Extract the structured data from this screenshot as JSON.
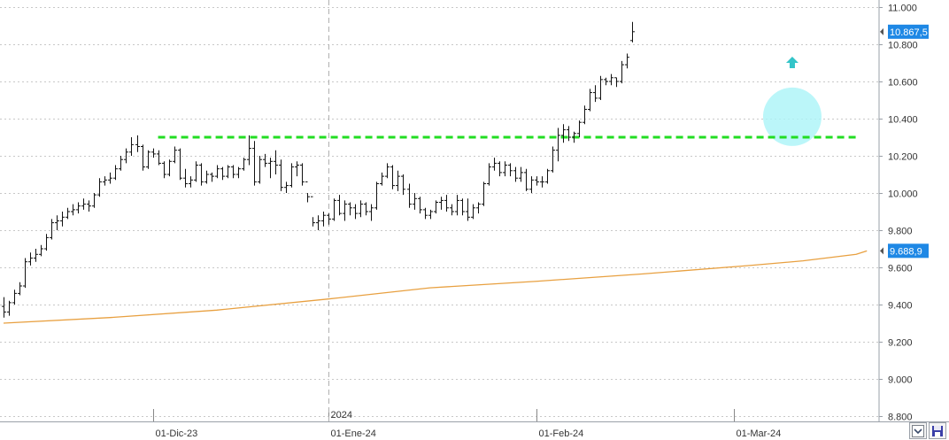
{
  "chart_data": {
    "type": "ohlc-bar",
    "title": "",
    "ylim": [
      8800,
      11000
    ],
    "y_ticks": [
      "11.000",
      "10.800",
      "10.600",
      "10.400",
      "10.200",
      "10.000",
      "9.800",
      "9.600",
      "9.400",
      "9.200",
      "9.000",
      "8.800"
    ],
    "y_tick_values": [
      11000,
      10800,
      10600,
      10400,
      10200,
      10000,
      9800,
      9600,
      9400,
      9200,
      9000,
      8800
    ],
    "x_labels": [
      {
        "label": "01-Dic-23",
        "index": 28
      },
      {
        "label": "01-Ene-24",
        "index": 61
      },
      {
        "label": "01-Feb-24",
        "index": 100
      },
      {
        "label": "01-Mar-24",
        "index": 137
      }
    ],
    "year_marker": {
      "label": "2024",
      "index": 61
    },
    "price_tags": [
      {
        "label": "10.867,5",
        "value": 10867.5,
        "color": "#1e88e5"
      },
      {
        "label": "9.688,9",
        "value": 9688.9,
        "color": "#1e88e5"
      }
    ],
    "resistance": {
      "value": 10300,
      "start_index": 29,
      "end_index": 160,
      "color": "#22dd22"
    },
    "moving_average": {
      "color": "#e8a040",
      "points": [
        [
          0,
          9300
        ],
        [
          20,
          9330
        ],
        [
          40,
          9370
        ],
        [
          61,
          9430
        ],
        [
          80,
          9490
        ],
        [
          100,
          9525
        ],
        [
          120,
          9565
        ],
        [
          140,
          9610
        ],
        [
          150,
          9635
        ],
        [
          160,
          9670
        ],
        [
          162,
          9688.9
        ]
      ]
    },
    "breakout_circle": {
      "index": 148,
      "value": 10410,
      "color": "#aaf4f8"
    },
    "arrow": {
      "index": 148,
      "value": 10700,
      "color": "#33c4c8",
      "direction": "up"
    },
    "bars": [
      [
        9390,
        9440,
        9330,
        9360
      ],
      [
        9360,
        9420,
        9340,
        9410
      ],
      [
        9410,
        9480,
        9400,
        9460
      ],
      [
        9460,
        9520,
        9450,
        9500
      ],
      [
        9500,
        9650,
        9490,
        9630
      ],
      [
        9630,
        9680,
        9610,
        9650
      ],
      [
        9650,
        9700,
        9630,
        9670
      ],
      [
        9670,
        9720,
        9660,
        9700
      ],
      [
        9700,
        9780,
        9690,
        9760
      ],
      [
        9760,
        9860,
        9750,
        9840
      ],
      [
        9840,
        9880,
        9800,
        9850
      ],
      [
        9850,
        9900,
        9820,
        9870
      ],
      [
        9870,
        9920,
        9860,
        9900
      ],
      [
        9900,
        9940,
        9880,
        9910
      ],
      [
        9910,
        9950,
        9890,
        9930
      ],
      [
        9930,
        9970,
        9910,
        9940
      ],
      [
        9940,
        9960,
        9900,
        9930
      ],
      [
        9930,
        10000,
        9920,
        9990
      ],
      [
        9990,
        10080,
        9980,
        10060
      ],
      [
        10060,
        10090,
        10040,
        10070
      ],
      [
        10070,
        10110,
        10050,
        10080
      ],
      [
        10080,
        10150,
        10070,
        10130
      ],
      [
        10130,
        10200,
        10120,
        10180
      ],
      [
        10180,
        10240,
        10160,
        10220
      ],
      [
        10220,
        10300,
        10200,
        10260
      ],
      [
        10260,
        10310,
        10220,
        10250
      ],
      [
        10250,
        10260,
        10120,
        10140
      ],
      [
        10140,
        10230,
        10130,
        10220
      ],
      [
        10220,
        10240,
        10190,
        10210
      ],
      [
        10210,
        10230,
        10150,
        10160
      ],
      [
        10160,
        10170,
        10080,
        10100
      ],
      [
        10100,
        10180,
        10090,
        10170
      ],
      [
        10170,
        10250,
        10160,
        10230
      ],
      [
        10230,
        10240,
        10070,
        10080
      ],
      [
        10080,
        10130,
        10030,
        10050
      ],
      [
        10050,
        10090,
        10030,
        10070
      ],
      [
        10070,
        10170,
        10060,
        10150
      ],
      [
        10150,
        10160,
        10040,
        10060
      ],
      [
        10060,
        10120,
        10050,
        10100
      ],
      [
        10100,
        10110,
        10060,
        10090
      ],
      [
        10090,
        10150,
        10080,
        10130
      ],
      [
        10130,
        10140,
        10070,
        10090
      ],
      [
        10090,
        10150,
        10080,
        10140
      ],
      [
        10140,
        10150,
        10080,
        10100
      ],
      [
        10100,
        10140,
        10080,
        10130
      ],
      [
        10130,
        10190,
        10120,
        10180
      ],
      [
        10180,
        10310,
        10150,
        10240
      ],
      [
        10240,
        10280,
        10040,
        10060
      ],
      [
        10060,
        10200,
        10050,
        10180
      ],
      [
        10180,
        10210,
        10140,
        10160
      ],
      [
        10160,
        10190,
        10080,
        10170
      ],
      [
        10170,
        10230,
        10100,
        10150
      ],
      [
        10150,
        10180,
        10010,
        10030
      ],
      [
        10030,
        10060,
        10000,
        10040
      ],
      [
        10040,
        10160,
        10030,
        10140
      ],
      [
        10140,
        10170,
        10090,
        10150
      ],
      [
        10150,
        10160,
        10040,
        10060
      ],
      [
        10060,
        10000,
        9950,
        9980
      ],
      [
        9980,
        9870,
        9820,
        9840
      ],
      [
        9840,
        9880,
        9800,
        9850
      ],
      [
        9850,
        9900,
        9820,
        9880
      ],
      [
        9880,
        9890,
        9830,
        9860
      ],
      [
        9860,
        9970,
        9850,
        9960
      ],
      [
        9960,
        9990,
        9880,
        9890
      ],
      [
        9890,
        9960,
        9850,
        9940
      ],
      [
        9940,
        9950,
        9880,
        9920
      ],
      [
        9920,
        9940,
        9860,
        9890
      ],
      [
        9890,
        9960,
        9870,
        9940
      ],
      [
        9940,
        9950,
        9880,
        9900
      ],
      [
        9900,
        9940,
        9850,
        9920
      ],
      [
        9920,
        10060,
        9910,
        10050
      ],
      [
        10050,
        10110,
        10040,
        10090
      ],
      [
        10090,
        10160,
        10080,
        10140
      ],
      [
        10140,
        10150,
        10020,
        10040
      ],
      [
        10040,
        10120,
        10010,
        10090
      ],
      [
        10090,
        10100,
        9990,
        10020
      ],
      [
        10020,
        10050,
        9920,
        9940
      ],
      [
        9940,
        10000,
        9910,
        9970
      ],
      [
        9970,
        9980,
        9890,
        9910
      ],
      [
        9910,
        9920,
        9860,
        9880
      ],
      [
        9880,
        9910,
        9860,
        9900
      ],
      [
        9900,
        9960,
        9890,
        9950
      ],
      [
        9950,
        9980,
        9910,
        9960
      ],
      [
        9960,
        9990,
        9900,
        9920
      ],
      [
        9920,
        9940,
        9880,
        9900
      ],
      [
        9900,
        9990,
        9880,
        9960
      ],
      [
        9960,
        9970,
        9880,
        9900
      ],
      [
        9900,
        9970,
        9850,
        9870
      ],
      [
        9870,
        9940,
        9860,
        9920
      ],
      [
        9920,
        9950,
        9890,
        9940
      ],
      [
        9940,
        10060,
        9930,
        10050
      ],
      [
        10050,
        10160,
        10040,
        10140
      ],
      [
        10140,
        10190,
        10120,
        10160
      ],
      [
        10160,
        10170,
        10090,
        10110
      ],
      [
        10110,
        10170,
        10090,
        10150
      ],
      [
        10150,
        10160,
        10090,
        10120
      ],
      [
        10120,
        10140,
        10060,
        10080
      ],
      [
        10080,
        10140,
        10060,
        10110
      ],
      [
        10110,
        10130,
        10010,
        10020
      ],
      [
        10020,
        10090,
        10000,
        10070
      ],
      [
        10070,
        10090,
        10040,
        10060
      ],
      [
        10060,
        10090,
        10030,
        10060
      ],
      [
        10060,
        10130,
        10050,
        10120
      ],
      [
        10120,
        10250,
        10110,
        10230
      ],
      [
        10230,
        10350,
        10170,
        10310
      ],
      [
        10310,
        10370,
        10270,
        10340
      ],
      [
        10340,
        10360,
        10280,
        10300
      ],
      [
        10300,
        10330,
        10270,
        10320
      ],
      [
        10320,
        10390,
        10300,
        10380
      ],
      [
        10380,
        10470,
        10370,
        10450
      ],
      [
        10450,
        10560,
        10440,
        10540
      ],
      [
        10540,
        10580,
        10490,
        10510
      ],
      [
        10510,
        10630,
        10500,
        10610
      ],
      [
        10610,
        10620,
        10580,
        10600
      ],
      [
        10600,
        10640,
        10580,
        10620
      ],
      [
        10620,
        10620,
        10570,
        10600
      ],
      [
        10600,
        10710,
        10590,
        10690
      ],
      [
        10690,
        10750,
        10670,
        10730
      ],
      [
        10820,
        10920,
        10810,
        10867.5
      ]
    ]
  },
  "toolbar": {
    "zoom_icon": "zoom-icon",
    "save_icon": "save-icon"
  }
}
